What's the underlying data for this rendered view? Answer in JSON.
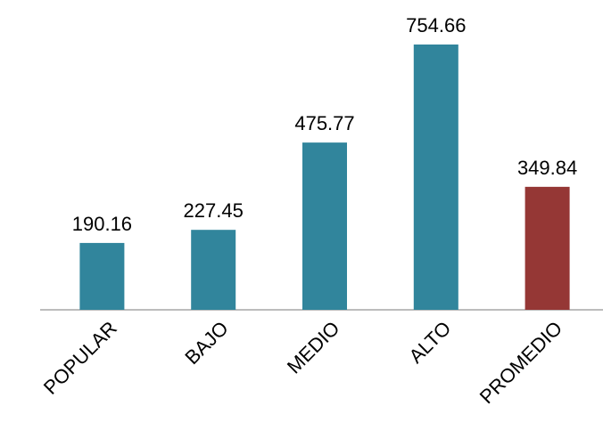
{
  "chart_data": {
    "type": "bar",
    "categories": [
      "POPULAR",
      "BAJO",
      "MEDIO",
      "ALTO",
      "PROMEDIO"
    ],
    "values": [
      190.16,
      227.45,
      475.77,
      754.66,
      349.84
    ],
    "colors": [
      "#31859c",
      "#31859c",
      "#31859c",
      "#31859c",
      "#953735"
    ]
  }
}
